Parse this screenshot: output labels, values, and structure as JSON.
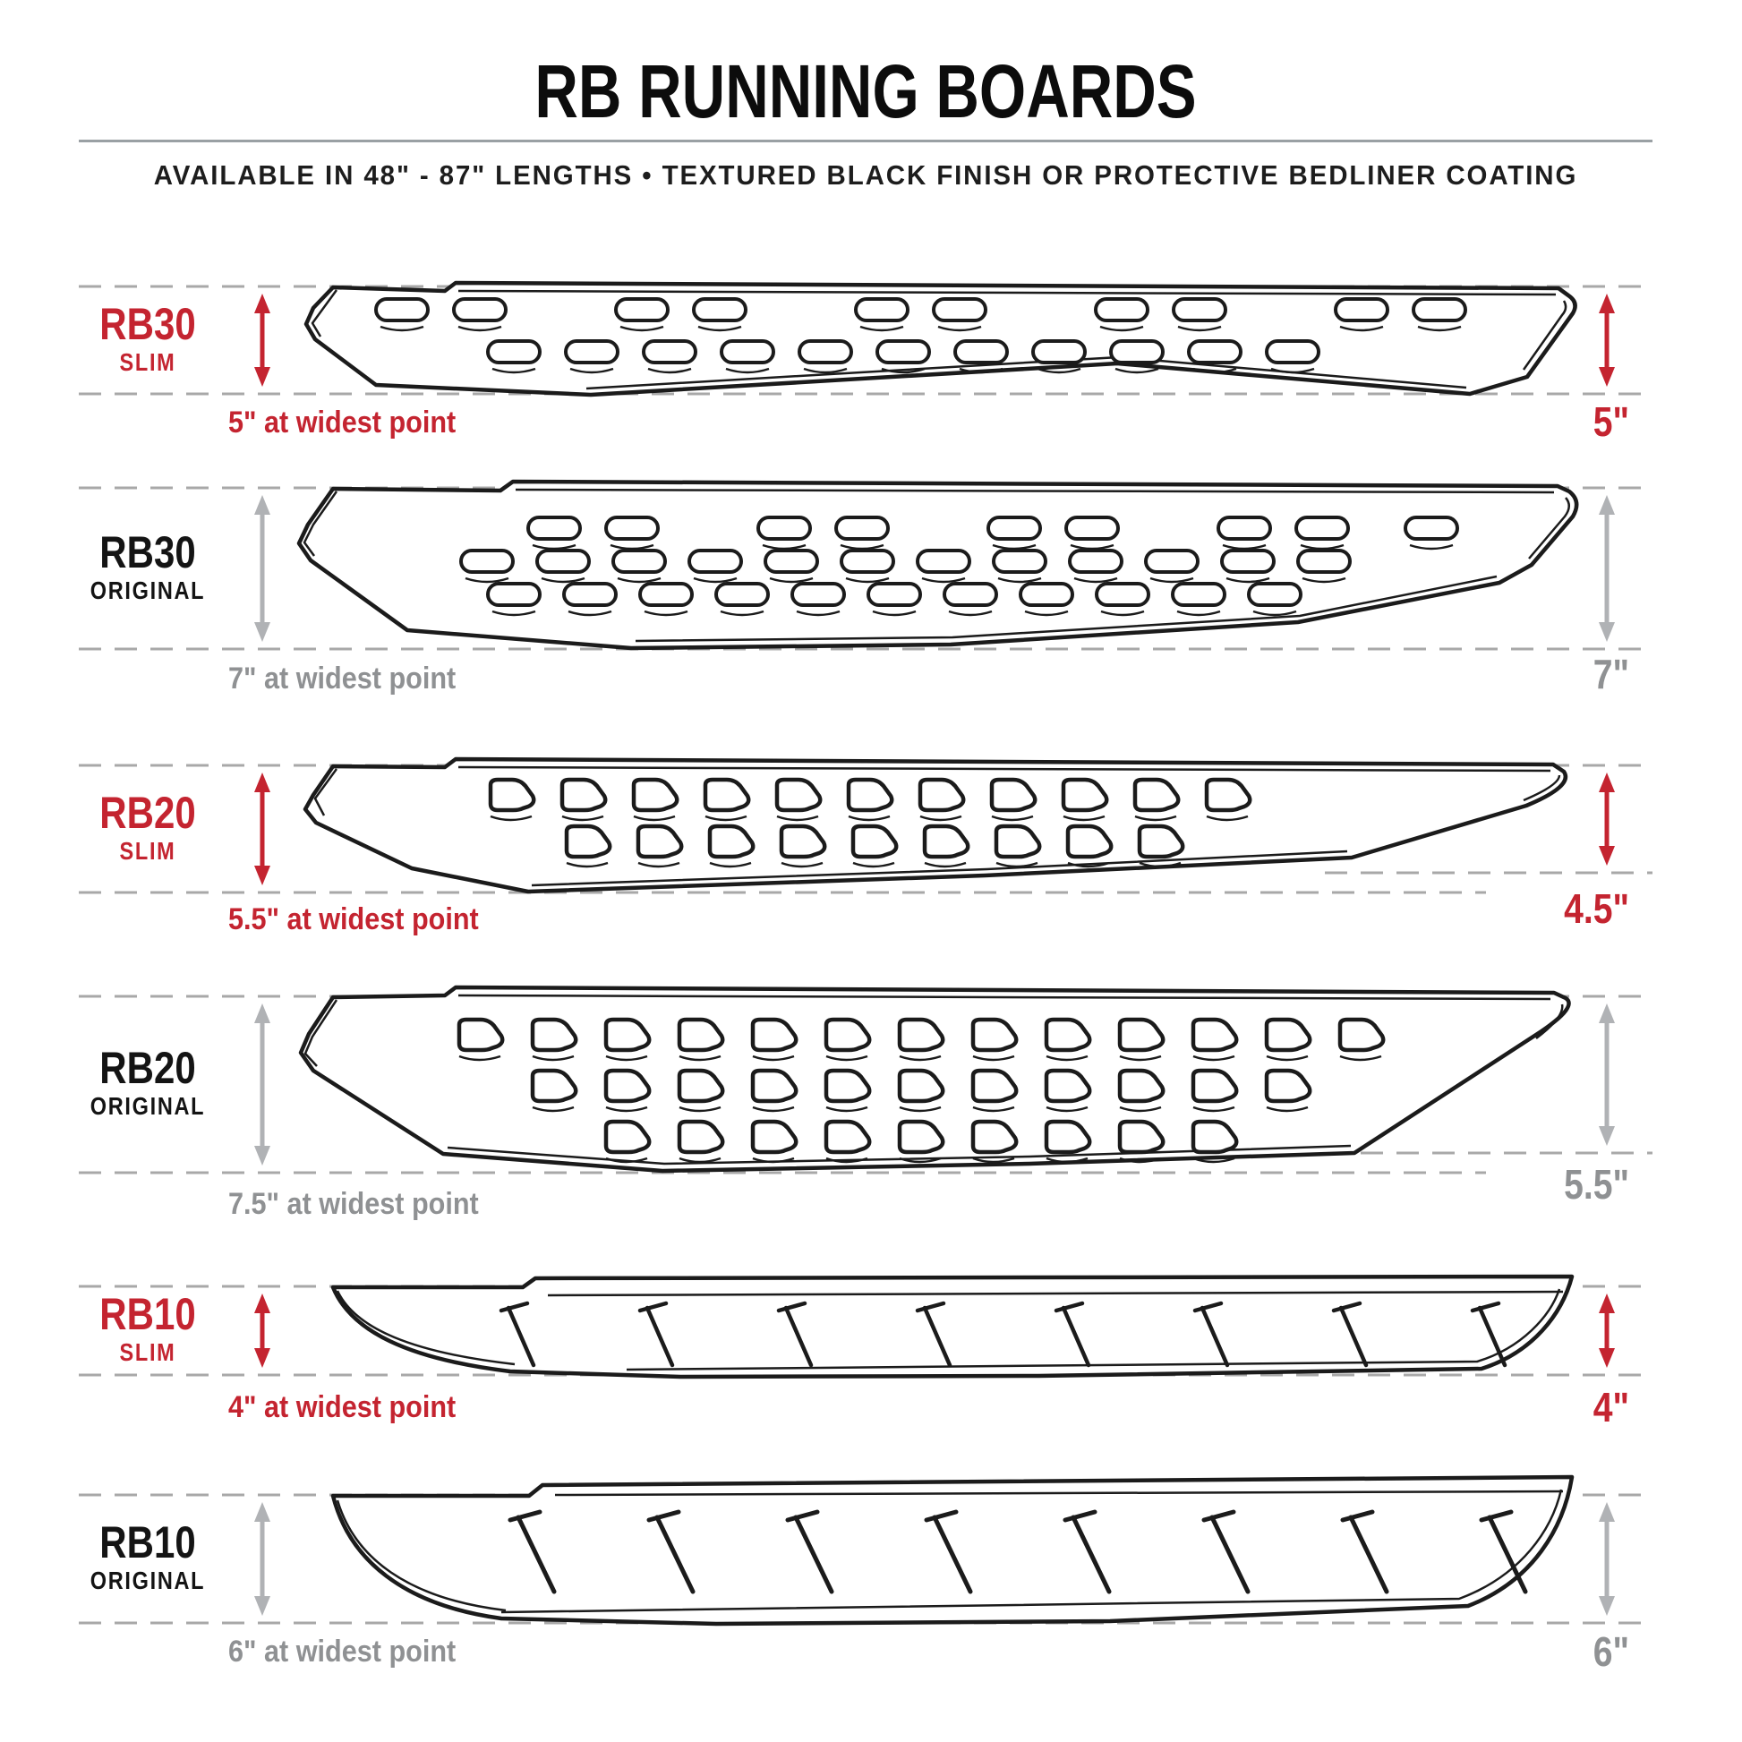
{
  "header": {
    "title": "RB RUNNING BOARDS",
    "subtitle": "AVAILABLE IN 48\" - 87\" LENGTHS  •  TEXTURED BLACK FINISH OR PROTECTIVE BEDLINER COATING"
  },
  "colors": {
    "accent_red": "#C42430",
    "original_gray": "#8f9193",
    "arrow_gray": "#b0b2b5",
    "dash_gray": "#a8a8a8",
    "line_ink": "#1b1b1b"
  },
  "rows": [
    {
      "model": "RB30",
      "variant": "SLIM",
      "widest_label": "5\" at widest point",
      "right_label": "5\"",
      "accent": "red"
    },
    {
      "model": "RB30",
      "variant": "ORIGINAL",
      "widest_label": "7\" at widest point",
      "right_label": "7\"",
      "accent": "gray"
    },
    {
      "model": "RB20",
      "variant": "SLIM",
      "widest_label": "5.5\" at widest point",
      "right_label": "4.5\"",
      "accent": "red"
    },
    {
      "model": "RB20",
      "variant": "ORIGINAL",
      "widest_label": "7.5\" at widest point",
      "right_label": "5.5\"",
      "accent": "gray"
    },
    {
      "model": "RB10",
      "variant": "SLIM",
      "widest_label": "4\" at widest point",
      "right_label": "4\"",
      "accent": "red"
    },
    {
      "model": "RB10",
      "variant": "ORIGINAL",
      "widest_label": "6\" at widest point",
      "right_label": "6\"",
      "accent": "gray"
    }
  ]
}
